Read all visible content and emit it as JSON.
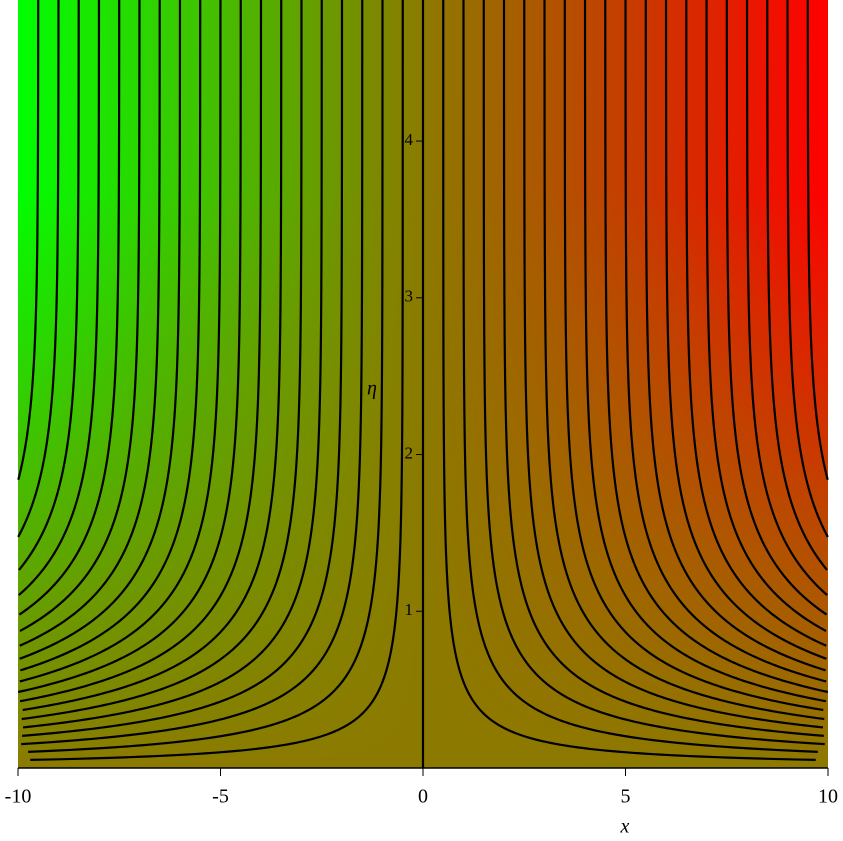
{
  "chart_data": {
    "type": "contour",
    "x_label": "x",
    "y_label": "η",
    "xlim": [
      -10,
      10
    ],
    "ylim": [
      0,
      4.9
    ],
    "xticks": [
      -10,
      -5,
      0,
      5,
      10
    ],
    "yticks": [
      1,
      2,
      3,
      4
    ],
    "levels": [
      -9.5,
      -9,
      -8.5,
      -8,
      -7.5,
      -7,
      -6.5,
      -6,
      -5.5,
      -5,
      -4.5,
      -4,
      -3.5,
      -3,
      -2.5,
      -2,
      -1.5,
      -1,
      -0.5,
      0,
      0.5,
      1,
      1.5,
      2,
      2.5,
      3,
      3.5,
      4,
      4.5,
      5,
      5.5,
      6,
      6.5,
      7,
      7.5,
      8,
      8.5,
      9,
      9.5
    ],
    "colors": [
      "#00ff00",
      "#8c7a00",
      "#ff0000"
    ],
    "line_color": "#000000"
  }
}
